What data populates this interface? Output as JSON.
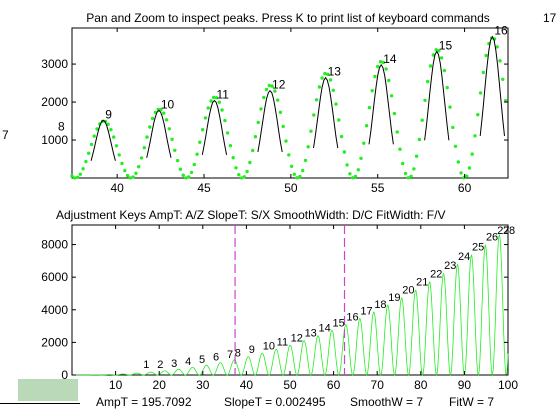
{
  "window": {
    "title_top": "Pan and Zoom to inspect peaks. Press K to print list of keyboard commands",
    "title_bottom": "Adjustment Keys   AmpT: A/Z    SlopeT: S/X    SmoothWidth: D/C    FitWidth: F/V",
    "edge_label_right": "17",
    "edge_label_left": "7"
  },
  "status": {
    "ampT": "AmpT = 195.7092",
    "slopeT": "SlopeT = 0.002495",
    "smoothW": "SmoothW = 7",
    "fitW": "FitW = 7",
    "swatch_color": "#b9d9b9"
  },
  "colors": {
    "signal": "#22ee22",
    "fit": "#000000",
    "marker": "#cc44cc",
    "axis": "#000000"
  },
  "chart_data": [
    {
      "type": "scatter",
      "title": "Pan and Zoom to inspect peaks. Press K to print list of keyboard commands",
      "xlim": [
        37.4,
        62.5
      ],
      "ylim": [
        0,
        3950
      ],
      "xticks": [
        40,
        45,
        50,
        55,
        60
      ],
      "yticks": [
        1000,
        2000,
        3000
      ],
      "period": 3.2,
      "min_x": 37.6,
      "amp_low": 1500,
      "amp_high": 3700,
      "peaks": [
        {
          "label": "8",
          "x": 36.8,
          "y": 1200
        },
        {
          "label": "9",
          "x": 39.2,
          "y": 1520
        },
        {
          "label": "10",
          "x": 42.4,
          "y": 1780
        },
        {
          "label": "11",
          "x": 45.6,
          "y": 2040
        },
        {
          "label": "12",
          "x": 48.8,
          "y": 2300
        },
        {
          "label": "13",
          "x": 52.0,
          "y": 2640
        },
        {
          "label": "14",
          "x": 55.2,
          "y": 2980
        },
        {
          "label": "15",
          "x": 58.4,
          "y": 3330
        },
        {
          "label": "16",
          "x": 61.6,
          "y": 3720
        }
      ]
    },
    {
      "type": "line",
      "title": "Adjustment Keys   AmpT: A/Z    SlopeT: S/X    SmoothWidth: D/C    FitWidth: F/V",
      "xlim": [
        0,
        100
      ],
      "ylim": [
        0,
        9200
      ],
      "xticks": [
        0,
        10,
        20,
        30,
        40,
        50,
        60,
        70,
        80,
        90,
        100
      ],
      "yticks": [
        0,
        2000,
        4000,
        6000,
        8000
      ],
      "period": 3.2,
      "zoom_markers_x": [
        37.4,
        62.5
      ],
      "peak_labels": [
        {
          "label": "1",
          "x": 16.8
        },
        {
          "label": "2",
          "x": 20.0
        },
        {
          "label": "3",
          "x": 23.2
        },
        {
          "label": "4",
          "x": 26.4
        },
        {
          "label": "5",
          "x": 29.6
        },
        {
          "label": "6",
          "x": 32.8
        },
        {
          "label": "7",
          "x": 36.0
        },
        {
          "label": "8",
          "x": 37.8
        },
        {
          "label": "9",
          "x": 41.0
        },
        {
          "label": "10",
          "x": 44.2
        },
        {
          "label": "11",
          "x": 47.4
        },
        {
          "label": "12",
          "x": 50.6
        },
        {
          "label": "13",
          "x": 53.8
        },
        {
          "label": "14",
          "x": 57.0
        },
        {
          "label": "15",
          "x": 60.2
        },
        {
          "label": "16",
          "x": 63.4
        },
        {
          "label": "17",
          "x": 66.6
        },
        {
          "label": "18",
          "x": 69.8
        },
        {
          "label": "19",
          "x": 73.0
        },
        {
          "label": "20",
          "x": 76.2
        },
        {
          "label": "21",
          "x": 79.4
        },
        {
          "label": "22",
          "x": 82.6
        },
        {
          "label": "23",
          "x": 85.8
        },
        {
          "label": "24",
          "x": 89.0
        },
        {
          "label": "25",
          "x": 92.2
        },
        {
          "label": "26",
          "x": 95.4
        },
        {
          "label": "27",
          "x": 98.0
        },
        {
          "label": "28",
          "x": 99.3
        }
      ]
    }
  ]
}
